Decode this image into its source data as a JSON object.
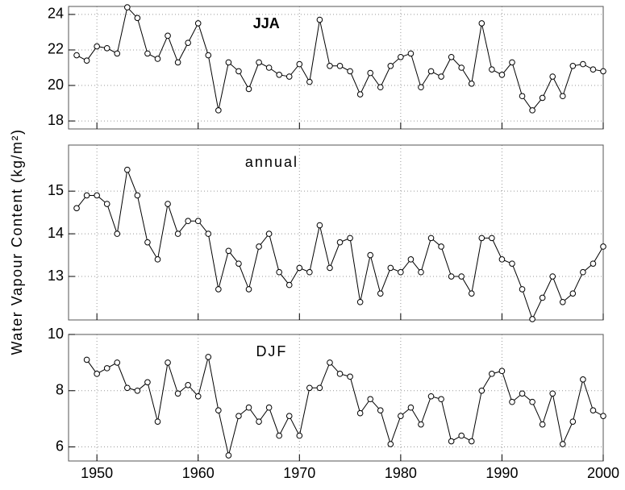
{
  "chart_data": [
    {
      "type": "line",
      "title": "JJA",
      "title_bold": true,
      "color": "#000000",
      "grid": true,
      "x": [
        1948,
        1949,
        1950,
        1951,
        1952,
        1953,
        1954,
        1955,
        1956,
        1957,
        1958,
        1959,
        1960,
        1961,
        1962,
        1963,
        1964,
        1965,
        1966,
        1967,
        1968,
        1969,
        1970,
        1971,
        1972,
        1973,
        1974,
        1975,
        1976,
        1977,
        1978,
        1979,
        1980,
        1981,
        1982,
        1983,
        1984,
        1985,
        1986,
        1987,
        1988,
        1989,
        1990,
        1991,
        1992,
        1993,
        1994,
        1995,
        1996,
        1997,
        1998,
        1999,
        2000
      ],
      "values": [
        21.7,
        21.4,
        22.2,
        22.1,
        21.8,
        24.4,
        23.8,
        21.8,
        21.5,
        22.8,
        21.3,
        22.4,
        23.5,
        21.7,
        18.6,
        21.3,
        20.8,
        19.8,
        21.3,
        21.0,
        20.6,
        20.5,
        21.2,
        20.2,
        23.7,
        21.1,
        21.1,
        20.8,
        19.5,
        20.7,
        19.9,
        21.1,
        21.6,
        21.8,
        19.9,
        20.8,
        20.5,
        21.6,
        21.0,
        20.1,
        23.5,
        20.9,
        20.6,
        21.3,
        19.4,
        18.6,
        19.3,
        20.5,
        19.4,
        21.1,
        21.2,
        20.9,
        20.8
      ],
      "xlim": [
        1947.2,
        2000
      ],
      "xticks": [
        1950,
        1960,
        1970,
        1980,
        1990,
        2000
      ],
      "ylim": [
        17.55,
        24.45
      ],
      "yticks": [
        18,
        20,
        22,
        24
      ]
    },
    {
      "type": "line",
      "title": "annual",
      "title_bold": false,
      "color": "#000000",
      "grid": true,
      "ylabel": "Water Vapour Content (kg/m²)",
      "x": [
        1948,
        1949,
        1950,
        1951,
        1952,
        1953,
        1954,
        1955,
        1956,
        1957,
        1958,
        1959,
        1960,
        1961,
        1962,
        1963,
        1964,
        1965,
        1966,
        1967,
        1968,
        1969,
        1970,
        1971,
        1972,
        1973,
        1974,
        1975,
        1976,
        1977,
        1978,
        1979,
        1980,
        1981,
        1982,
        1983,
        1984,
        1985,
        1986,
        1987,
        1988,
        1989,
        1990,
        1991,
        1992,
        1993,
        1994,
        1995,
        1996,
        1997,
        1998,
        1999,
        2000
      ],
      "values": [
        14.6,
        14.9,
        14.9,
        14.7,
        14.0,
        15.5,
        14.9,
        13.8,
        13.4,
        14.7,
        14.0,
        14.3,
        14.3,
        14.0,
        12.7,
        13.6,
        13.3,
        12.7,
        13.7,
        14.0,
        13.1,
        12.8,
        13.2,
        13.1,
        14.2,
        13.2,
        13.8,
        13.9,
        12.4,
        13.5,
        12.6,
        13.2,
        13.1,
        13.4,
        13.1,
        13.9,
        13.7,
        13.0,
        13.0,
        12.6,
        13.9,
        13.9,
        13.4,
        13.3,
        12.7,
        12.0,
        12.5,
        13.0,
        12.4,
        12.6,
        13.1,
        13.3,
        13.7
      ],
      "xlim": [
        1947.2,
        2000
      ],
      "xticks": [
        1950,
        1960,
        1970,
        1980,
        1990,
        2000
      ],
      "ylim": [
        11.98,
        16.08
      ],
      "yticks": [
        13,
        14,
        15
      ]
    },
    {
      "type": "line",
      "title": "DJF",
      "title_bold": false,
      "color": "#000000",
      "grid": true,
      "x": [
        1948,
        1949,
        1950,
        1951,
        1952,
        1953,
        1954,
        1955,
        1956,
        1957,
        1958,
        1959,
        1960,
        1961,
        1962,
        1963,
        1964,
        1965,
        1966,
        1967,
        1968,
        1969,
        1970,
        1971,
        1972,
        1973,
        1974,
        1975,
        1976,
        1977,
        1978,
        1979,
        1980,
        1981,
        1982,
        1983,
        1984,
        1985,
        1986,
        1987,
        1988,
        1989,
        1990,
        1991,
        1992,
        1993,
        1994,
        1995,
        1996,
        1997,
        1998,
        1999,
        2000
      ],
      "values": [
        null,
        9.1,
        8.6,
        8.8,
        9.0,
        8.1,
        8.0,
        8.3,
        6.9,
        9.0,
        7.9,
        8.2,
        7.8,
        9.2,
        7.3,
        5.7,
        7.1,
        7.4,
        6.9,
        7.4,
        6.4,
        7.1,
        6.4,
        8.1,
        8.1,
        9.0,
        8.6,
        8.5,
        7.2,
        7.7,
        7.3,
        6.1,
        7.1,
        7.4,
        6.8,
        7.8,
        7.7,
        6.2,
        6.4,
        6.2,
        8.0,
        8.6,
        8.7,
        7.6,
        7.9,
        7.6,
        6.8,
        7.9,
        6.1,
        6.9,
        8.4,
        7.3,
        7.1
      ],
      "xlim": [
        1947.2,
        2000
      ],
      "xticks": [
        1950,
        1960,
        1970,
        1980,
        1990,
        2000
      ],
      "ylim": [
        5.5,
        10
      ],
      "yticks": [
        6,
        8,
        10
      ],
      "show_xtick_labels": true
    }
  ]
}
